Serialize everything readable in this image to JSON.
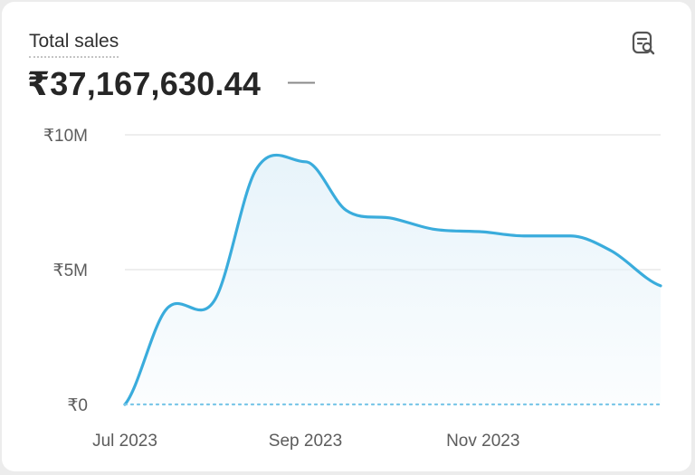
{
  "header": {
    "title": "Total sales",
    "total_value": "₹37,167,630.44",
    "delta": "—",
    "action_icon": "search-report-icon"
  },
  "colors": {
    "line": "#3aacdc",
    "fill": "#e6f3fa",
    "grid": "#e4e4e4",
    "baseline": "#7cc7e8"
  },
  "chart_data": {
    "type": "area",
    "title": "Total sales",
    "xlabel": "",
    "ylabel": "",
    "x": [
      "2023-07-01",
      "2023-07-15",
      "2023-08-01",
      "2023-08-15",
      "2023-09-01",
      "2023-09-15",
      "2023-10-01",
      "2023-10-15",
      "2023-11-01",
      "2023-11-15",
      "2023-12-01",
      "2023-12-15",
      "2024-01-01"
    ],
    "values": [
      0,
      3500000,
      3900000,
      8700000,
      9000000,
      7200000,
      6900000,
      6500000,
      6400000,
      6250000,
      6250000,
      5700000,
      4400000
    ],
    "ylim": [
      0,
      10000000
    ],
    "y_ticks": [
      0,
      5000000,
      10000000
    ],
    "y_tick_labels": [
      "₹0",
      "₹5M",
      "₹10M"
    ],
    "x_ticks": [
      "2023-07-01",
      "2023-09-01",
      "2023-11-01"
    ],
    "x_tick_labels": [
      "Jul 2023",
      "Sep 2023",
      "Nov 2023"
    ],
    "grid": true,
    "baseline_style": "dotted"
  }
}
